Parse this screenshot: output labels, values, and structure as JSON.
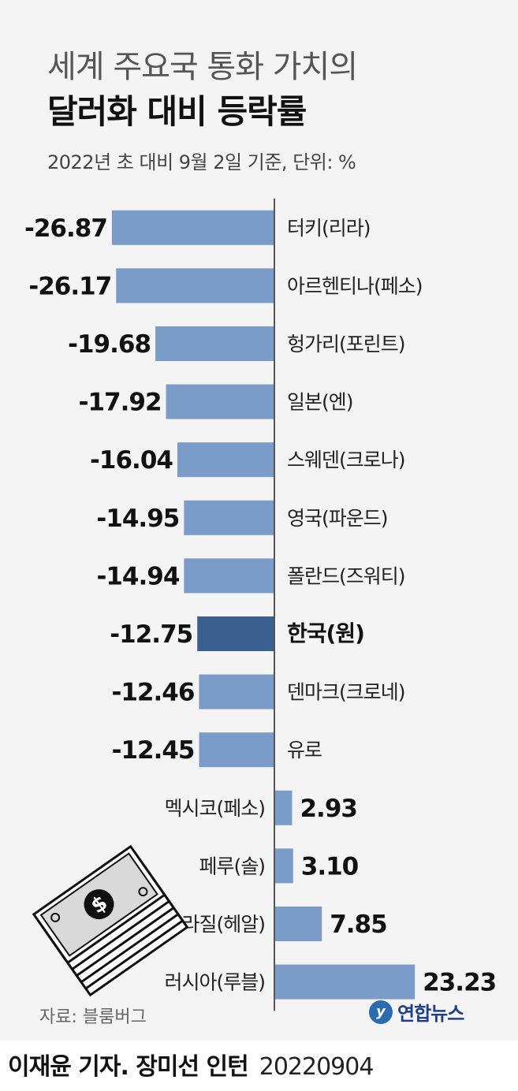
{
  "header": {
    "title_line1": "세계 주요국 통화 가치의",
    "title_line2": "달러화 대비 등락률",
    "subtitle": "2022년 초 대비 9월 2일 기준, 단위: %"
  },
  "chart_data": {
    "type": "bar",
    "orientation": "horizontal",
    "unit": "%",
    "categories": [
      "터키(리라)",
      "아르헨티나(페소)",
      "헝가리(포린트)",
      "일본(엔)",
      "스웨덴(크로나)",
      "영국(파운드)",
      "폴란드(즈워티)",
      "한국(원)",
      "덴마크(크로네)",
      "유로",
      "멕시코(페소)",
      "페루(솔)",
      "브라질(헤알)",
      "러시아(루블)"
    ],
    "values": [
      -26.87,
      -26.17,
      -19.68,
      -17.92,
      -16.04,
      -14.95,
      -14.94,
      -12.75,
      -12.46,
      -12.45,
      2.93,
      3.1,
      7.85,
      23.23
    ],
    "value_labels": [
      "-26.87",
      "-26.17",
      "-19.68",
      "-17.92",
      "-16.04",
      "-14.95",
      "-14.94",
      "-12.75",
      "-12.46",
      "-12.45",
      "2.93",
      "3.10",
      "7.85",
      "23.23"
    ],
    "highlight_category": "한국(원)",
    "bar_color": "#7b9cc8",
    "highlight_color": "#3a6090",
    "axis_color": "#555555",
    "baseline": 0
  },
  "footer": {
    "source": "자료: 블룸버그",
    "brand": "연합뉴스",
    "credit": "이재윤 기자. 장미선 인턴",
    "date": "20220904"
  },
  "illustration": "dollar-bills-icon"
}
